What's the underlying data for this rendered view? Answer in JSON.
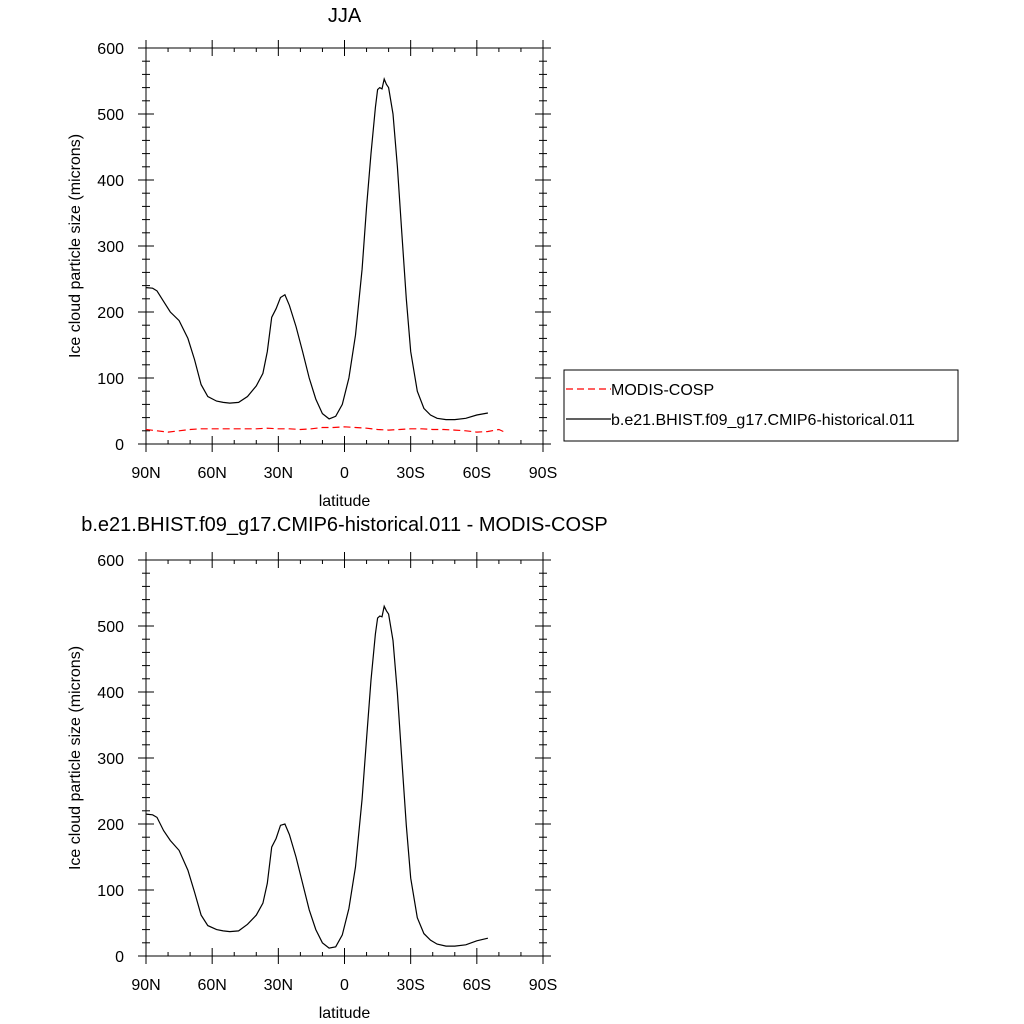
{
  "colors": {
    "model_line": "#000000",
    "obs_line": "#ff0000",
    "background": "#ffffff"
  },
  "chart_data": [
    {
      "type": "line",
      "title": "JJA",
      "xlabel": "latitude",
      "ylabel": "Ice cloud particle size (microns)",
      "xlim": [
        -90,
        90
      ],
      "ylim": [
        0,
        600
      ],
      "x_direction": "north-to-south",
      "xtick_values": [
        -90,
        -60,
        -30,
        0,
        30,
        60,
        90
      ],
      "xtick_labels": [
        "90N",
        "60N",
        "30N",
        "0",
        "30S",
        "60S",
        "90S"
      ],
      "yticks": [
        0,
        100,
        200,
        300,
        400,
        500,
        600
      ],
      "grid": false,
      "legend": {
        "placement": "right",
        "entries": [
          {
            "label": "MODIS-COSP",
            "style": "dashed",
            "color": "#ff0000"
          },
          {
            "label": "b.e21.BHIST.f09_g17.CMIP6-historical.011",
            "style": "solid",
            "color": "#000000"
          }
        ]
      },
      "series": [
        {
          "name": "MODIS-COSP",
          "style": "dashed",
          "color": "#ff0000",
          "x": [
            -90,
            -85,
            -80,
            -75,
            -70,
            -65,
            -60,
            -55,
            -50,
            -45,
            -40,
            -35,
            -30,
            -25,
            -20,
            -15,
            -10,
            -5,
            0,
            5,
            10,
            15,
            20,
            25,
            30,
            35,
            40,
            45,
            50,
            55,
            60,
            65,
            70,
            72
          ],
          "y": [
            22,
            20,
            18,
            20,
            22,
            23,
            23,
            23,
            23,
            23,
            23,
            24,
            23,
            23,
            22,
            23,
            25,
            25,
            26,
            25,
            24,
            22,
            21,
            22,
            23,
            23,
            22,
            22,
            21,
            20,
            18,
            19,
            22,
            19
          ]
        },
        {
          "name": "b.e21.BHIST.f09_g17.CMIP6-historical.011",
          "style": "solid",
          "color": "#000000",
          "x": [
            -90,
            -87,
            -85,
            -82,
            -79,
            -75,
            -71,
            -68,
            -65,
            -62,
            -58,
            -55,
            -52,
            -48,
            -44,
            -40,
            -37,
            -35,
            -33,
            -31,
            -29,
            -27,
            -25,
            -22,
            -19,
            -16,
            -13,
            -10,
            -7,
            -4,
            -1,
            2,
            5,
            8,
            10,
            12,
            14,
            15,
            16,
            17,
            18,
            19,
            20,
            22,
            24,
            26,
            28,
            30,
            33,
            36,
            39,
            42,
            46,
            50,
            55,
            60,
            65
          ],
          "y": [
            237,
            236,
            232,
            216,
            200,
            187,
            160,
            128,
            90,
            72,
            65,
            63,
            62,
            63,
            72,
            88,
            107,
            140,
            192,
            205,
            222,
            226,
            210,
            178,
            140,
            100,
            68,
            46,
            38,
            42,
            60,
            100,
            165,
            265,
            360,
            440,
            510,
            537,
            540,
            538,
            553,
            545,
            540,
            500,
            420,
            320,
            220,
            140,
            80,
            54,
            44,
            39,
            37,
            37,
            39,
            44,
            47
          ]
        }
      ]
    },
    {
      "type": "line",
      "title": "b.e21.BHIST.f09_g17.CMIP6-historical.011 - MODIS-COSP",
      "xlabel": "latitude",
      "ylabel": "Ice cloud particle size (microns)",
      "xlim": [
        -90,
        90
      ],
      "ylim": [
        0,
        600
      ],
      "x_direction": "north-to-south",
      "xtick_values": [
        -90,
        -60,
        -30,
        0,
        30,
        60,
        90
      ],
      "xtick_labels": [
        "90N",
        "60N",
        "30N",
        "0",
        "30S",
        "60S",
        "90S"
      ],
      "yticks": [
        0,
        100,
        200,
        300,
        400,
        500,
        600
      ],
      "grid": false,
      "series": [
        {
          "style": "solid",
          "color": "#000000",
          "x": [
            -90,
            -87,
            -85,
            -82,
            -79,
            -75,
            -71,
            -68,
            -65,
            -62,
            -58,
            -55,
            -52,
            -48,
            -44,
            -40,
            -37,
            -35,
            -33,
            -31,
            -29,
            -27,
            -25,
            -22,
            -19,
            -16,
            -13,
            -10,
            -7,
            -4,
            -1,
            2,
            5,
            8,
            10,
            12,
            14,
            15,
            16,
            17,
            18,
            19,
            20,
            22,
            24,
            26,
            28,
            30,
            33,
            36,
            39,
            42,
            46,
            50,
            55,
            60,
            65
          ],
          "y": [
            215,
            214,
            210,
            190,
            175,
            160,
            130,
            97,
            62,
            46,
            40,
            38,
            37,
            38,
            48,
            62,
            80,
            110,
            165,
            178,
            198,
            200,
            184,
            150,
            110,
            70,
            40,
            20,
            12,
            14,
            32,
            72,
            135,
            238,
            330,
            418,
            488,
            512,
            515,
            514,
            530,
            523,
            518,
            478,
            398,
            298,
            198,
            118,
            58,
            34,
            24,
            18,
            15,
            15,
            17,
            23,
            27
          ]
        }
      ]
    }
  ]
}
